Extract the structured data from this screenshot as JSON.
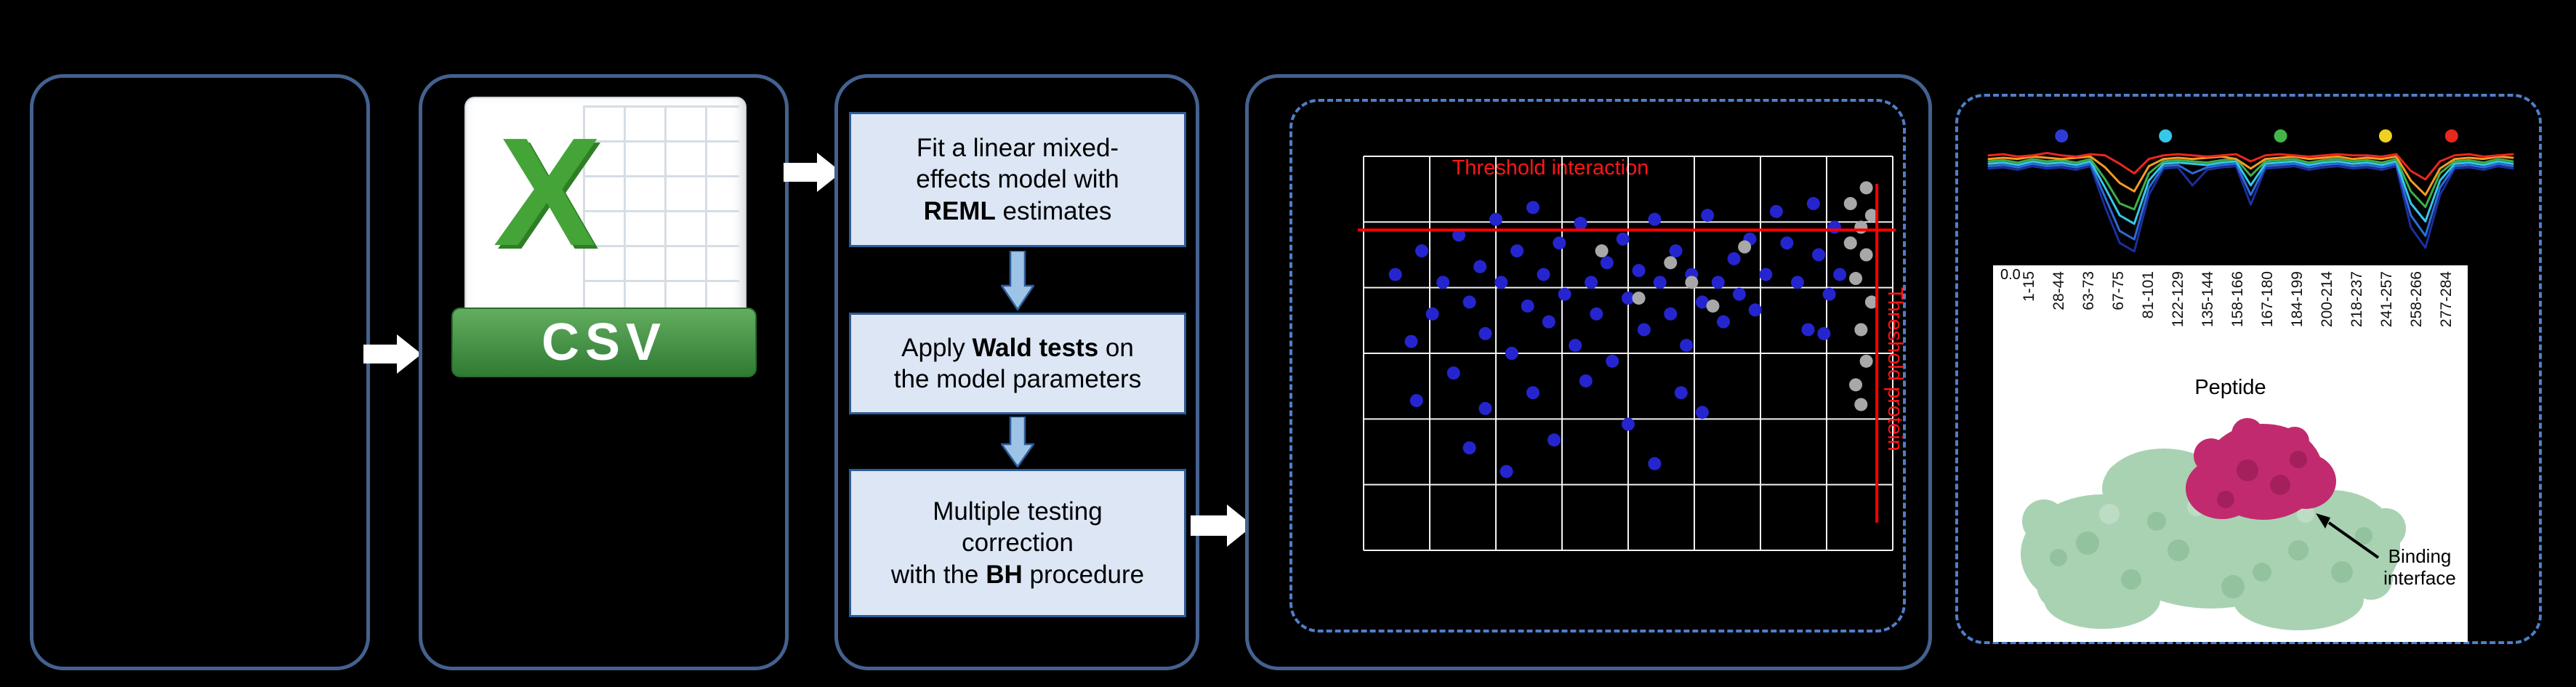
{
  "canvas": {
    "bg": "#000000",
    "panel_border": "#44618f",
    "dashed_border": "#4f7fc9"
  },
  "flow": {
    "csv_icon": {
      "x_label": "X",
      "format_label": "CSV"
    },
    "steps": {
      "s1": {
        "l1": "Fit a linear mixed-",
        "l2": "effects model with",
        "l3_bold": "REML",
        "l3_rest": " estimates"
      },
      "s2": {
        "l1_pre": "Apply ",
        "l1_bold": "Wald tests",
        "l1_post": " on",
        "l2": "the model parameters"
      },
      "s3": {
        "l1": "Multiple testing",
        "l2": "correction",
        "l3_pre": "with the ",
        "l3_bold": "BH",
        "l3_post": " procedure"
      }
    }
  },
  "uptake_panel": {
    "binding_line1": "Binding",
    "binding_line2": "interface"
  },
  "chart_data": [
    {
      "type": "scatter",
      "title": "",
      "annotations": {
        "h": "Threshold interaction",
        "v": "Threshold protein"
      },
      "h_threshold_pct_from_top": 18.7,
      "v_threshold_pct_from_left": 97,
      "grid": {
        "cols": 8,
        "rows": 6,
        "color": "#ffffff"
      },
      "encoding_note": "points are percent of plot area, y measured from top-left",
      "series": [
        {
          "name": "peptides-blue",
          "color": "#2525d0",
          "points": [
            [
              6,
              30
            ],
            [
              9,
              47
            ],
            [
              11,
              24
            ],
            [
              13,
              40
            ],
            [
              15,
              32
            ],
            [
              17,
              55
            ],
            [
              18,
              20
            ],
            [
              20,
              37
            ],
            [
              22,
              28
            ],
            [
              23,
              45
            ],
            [
              25,
              16
            ],
            [
              26,
              32
            ],
            [
              28,
              50
            ],
            [
              29,
              24
            ],
            [
              31,
              38
            ],
            [
              32,
              13
            ],
            [
              34,
              30
            ],
            [
              35,
              42
            ],
            [
              37,
              22
            ],
            [
              38,
              35
            ],
            [
              40,
              48
            ],
            [
              41,
              17
            ],
            [
              43,
              32
            ],
            [
              44,
              40
            ],
            [
              46,
              27
            ],
            [
              47,
              52
            ],
            [
              49,
              21
            ],
            [
              50,
              36
            ],
            [
              52,
              29
            ],
            [
              53,
              44
            ],
            [
              55,
              16
            ],
            [
              56,
              32
            ],
            [
              58,
              40
            ],
            [
              59,
              24
            ],
            [
              61,
              48
            ],
            [
              62,
              30
            ],
            [
              64,
              37
            ],
            [
              65,
              15
            ],
            [
              67,
              32
            ],
            [
              68,
              42
            ],
            [
              70,
              26
            ],
            [
              71,
              35
            ],
            [
              73,
              21
            ],
            [
              74,
              39
            ],
            [
              76,
              30
            ],
            [
              64,
              65
            ],
            [
              36,
              72
            ],
            [
              27,
              80
            ],
            [
              50,
              68
            ],
            [
              20,
              74
            ],
            [
              55,
              78
            ],
            [
              10,
              62
            ],
            [
              80,
              22
            ],
            [
              82,
              32
            ],
            [
              78,
              14
            ],
            [
              84,
              44
            ],
            [
              32,
              60
            ],
            [
              42,
              57
            ],
            [
              60,
              60
            ],
            [
              23,
              64
            ],
            [
              86,
              25
            ],
            [
              88,
              35
            ],
            [
              85,
              12
            ],
            [
              90,
              30
            ],
            [
              87,
              45
            ],
            [
              89,
              18
            ]
          ]
        },
        {
          "name": "peptides-gray",
          "color": "#a8a8a8",
          "points": [
            [
              92,
              12
            ],
            [
              94,
              18
            ],
            [
              95,
              25
            ],
            [
              93,
              31
            ],
            [
              96,
              37
            ],
            [
              94,
              44
            ],
            [
              95,
              52
            ],
            [
              93,
              58
            ],
            [
              96,
              15
            ],
            [
              92,
              22
            ],
            [
              45,
              24
            ],
            [
              58,
              27
            ],
            [
              66,
              38
            ],
            [
              72,
              23
            ],
            [
              62,
              32
            ],
            [
              52,
              36
            ],
            [
              94,
              63
            ],
            [
              95,
              8
            ]
          ]
        }
      ]
    },
    {
      "type": "line",
      "xlabel": "Peptide",
      "y_tick_label": "0.0",
      "values_unit": "pct_from_top",
      "x_labels": [
        "1-15",
        "28-44",
        "63-73",
        "67-75",
        "81-101",
        "122-129",
        "135-144",
        "158-166",
        "167-180",
        "184-199",
        "200-214",
        "218-237",
        "241-257",
        "258-266",
        "277-284"
      ],
      "series": [
        {
          "name": "uptake-red",
          "color": "#e8281e",
          "values": [
            15,
            14,
            16,
            15,
            13,
            15,
            16,
            14,
            15,
            22,
            30,
            18,
            15,
            14,
            15,
            16,
            15,
            14,
            20,
            15,
            14,
            15,
            16,
            15,
            14,
            15,
            15,
            16,
            14,
            28,
            35,
            20,
            15,
            14,
            16,
            15,
            14
          ]
        },
        {
          "name": "uptake-orange",
          "color": "#f59a23",
          "values": [
            18,
            17,
            18,
            16,
            17,
            18,
            17,
            16,
            25,
            38,
            45,
            24,
            18,
            17,
            18,
            17,
            16,
            18,
            26,
            18,
            17,
            16,
            18,
            17,
            16,
            18,
            17,
            18,
            16,
            36,
            48,
            26,
            18,
            17,
            18,
            16,
            17
          ]
        },
        {
          "name": "uptake-green",
          "color": "#3fae49",
          "values": [
            20,
            19,
            21,
            18,
            20,
            19,
            21,
            18,
            35,
            55,
            60,
            30,
            20,
            19,
            20,
            21,
            19,
            18,
            32,
            20,
            19,
            18,
            21,
            19,
            18,
            20,
            19,
            21,
            18,
            45,
            58,
            30,
            20,
            19,
            21,
            18,
            20
          ]
        },
        {
          "name": "uptake-cyan",
          "color": "#35c8e8",
          "values": [
            22,
            21,
            23,
            20,
            22,
            21,
            23,
            20,
            42,
            65,
            72,
            36,
            22,
            21,
            22,
            23,
            21,
            20,
            40,
            22,
            21,
            20,
            23,
            21,
            20,
            22,
            21,
            23,
            20,
            55,
            70,
            36,
            22,
            21,
            23,
            20,
            22
          ]
        },
        {
          "name": "uptake-blue",
          "color": "#2e6bd6",
          "values": [
            24,
            23,
            25,
            22,
            24,
            23,
            25,
            22,
            50,
            78,
            85,
            42,
            24,
            23,
            30,
            25,
            23,
            22,
            48,
            24,
            23,
            22,
            25,
            23,
            22,
            24,
            23,
            25,
            22,
            65,
            82,
            42,
            24,
            23,
            25,
            22,
            24
          ]
        },
        {
          "name": "uptake-navy",
          "color": "#1a2f9e",
          "values": [
            26,
            25,
            27,
            24,
            26,
            25,
            27,
            24,
            58,
            88,
            95,
            48,
            26,
            25,
            40,
            27,
            25,
            24,
            56,
            26,
            25,
            24,
            27,
            25,
            24,
            26,
            25,
            27,
            24,
            75,
            92,
            48,
            26,
            25,
            27,
            24,
            26
          ]
        }
      ],
      "markers": [
        {
          "color": "#2e3bd6",
          "x_pct": 14.5
        },
        {
          "color": "#35c8e8",
          "x_pct": 34
        },
        {
          "color": "#43b649",
          "x_pct": 55.6
        },
        {
          "color": "#f0d122",
          "x_pct": 75.3
        },
        {
          "color": "#e8281e",
          "x_pct": 87.7
        }
      ]
    }
  ]
}
